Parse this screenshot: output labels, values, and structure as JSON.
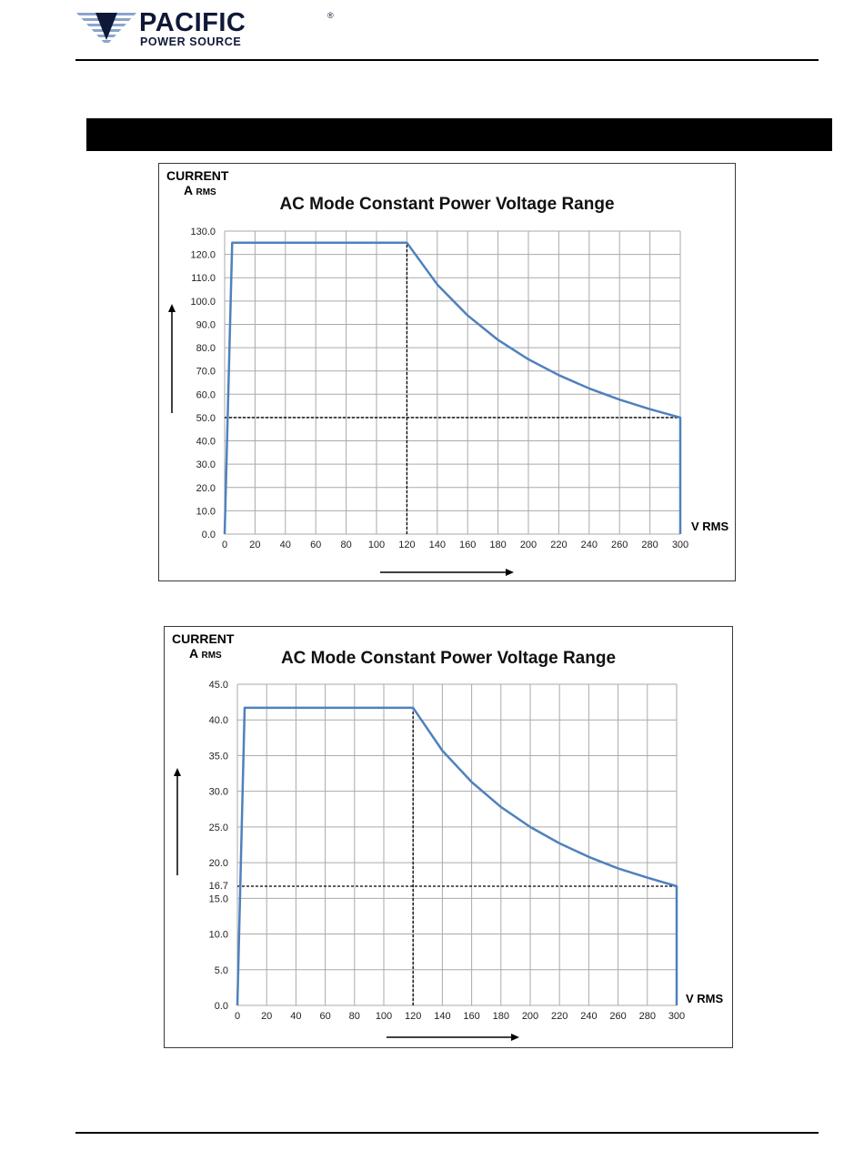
{
  "header": {
    "logo_main": "PACIFIC",
    "logo_registered": "®",
    "logo_sub": "POWER SOURCE"
  },
  "colors": {
    "series_line": "#4f81bd",
    "grid": "#aaaaaa",
    "logo_navy": "#101838"
  },
  "chart_data": [
    {
      "type": "line",
      "title": "AC Mode Constant Power Voltage Range",
      "ylabel_line1": "CURRENT",
      "ylabel_line2": "A",
      "ylabel_sub": "RMS",
      "xlabel": "V RMS",
      "xlim": [
        0,
        300
      ],
      "ylim": [
        0,
        130
      ],
      "grid": true,
      "legend": "none",
      "x_ticks": [
        0,
        20,
        40,
        60,
        80,
        100,
        120,
        140,
        160,
        180,
        200,
        220,
        240,
        260,
        280,
        300
      ],
      "y_ticks": [
        "0.0",
        "10.0",
        "20.0",
        "30.0",
        "40.0",
        "50.0",
        "60.0",
        "70.0",
        "80.0",
        "90.0",
        "100.0",
        "110.0",
        "120.0",
        "130.0"
      ],
      "series": [
        {
          "x": [
            0,
            5,
            120,
            140,
            160,
            180,
            200,
            220,
            240,
            260,
            280,
            300,
            300
          ],
          "y": [
            0,
            125,
            125,
            107.1,
            93.8,
            83.3,
            75.0,
            68.2,
            62.5,
            57.7,
            53.6,
            50.0,
            0
          ]
        }
      ],
      "reference_lines": [
        {
          "orientation": "vertical",
          "x": 120,
          "y_from": 0,
          "y_to": 125
        },
        {
          "orientation": "horizontal",
          "y": 50,
          "x_from": 0,
          "x_to": 300
        }
      ]
    },
    {
      "type": "line",
      "title": "AC Mode Constant Power Voltage Range",
      "ylabel_line1": "CURRENT",
      "ylabel_line2": "A",
      "ylabel_sub": "RMS",
      "xlabel": "V RMS",
      "xlim": [
        0,
        300
      ],
      "ylim": [
        0,
        45
      ],
      "grid": true,
      "legend": "none",
      "x_ticks": [
        0,
        20,
        40,
        60,
        80,
        100,
        120,
        140,
        160,
        180,
        200,
        220,
        240,
        260,
        280,
        300
      ],
      "y_ticks": [
        "0.0",
        "5.0",
        "10.0",
        "15.0",
        "20.0",
        "25.0",
        "30.0",
        "35.0",
        "40.0",
        "45.0"
      ],
      "extra_y_labels": [
        {
          "value": 16.7,
          "label": "16.7"
        }
      ],
      "series": [
        {
          "x": [
            0,
            5,
            120,
            140,
            160,
            180,
            200,
            220,
            240,
            260,
            280,
            300,
            300
          ],
          "y": [
            0,
            41.7,
            41.7,
            35.7,
            31.3,
            27.8,
            25.0,
            22.7,
            20.8,
            19.2,
            17.9,
            16.7,
            0
          ]
        }
      ],
      "reference_lines": [
        {
          "orientation": "vertical",
          "x": 120,
          "y_from": 0,
          "y_to": 41.7
        },
        {
          "orientation": "horizontal",
          "y": 16.7,
          "x_from": 0,
          "x_to": 300
        }
      ]
    }
  ]
}
